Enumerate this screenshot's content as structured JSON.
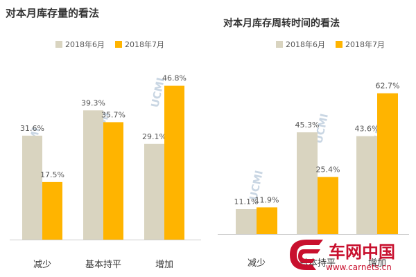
{
  "chart_data": [
    {
      "type": "bar",
      "title": "对本月库存量的看法",
      "categories": [
        "减少",
        "基本持平",
        "增加"
      ],
      "series": [
        {
          "name": "2018年6月",
          "values": [
            31.6,
            39.3,
            29.1
          ]
        },
        {
          "name": "2018年7月",
          "values": [
            17.5,
            35.7,
            46.8
          ]
        }
      ],
      "value_suffix": "%",
      "ylim": [
        0,
        60
      ],
      "grid": false,
      "legend_position": "top",
      "colors": [
        "#d9d4c0",
        "#ffb400"
      ]
    },
    {
      "type": "bar",
      "title": "对本月库存周转时间的看法",
      "categories": [
        "减少",
        "基本持平",
        "增加"
      ],
      "series": [
        {
          "name": "2018年6月",
          "values": [
            11.1,
            45.3,
            43.6
          ]
        },
        {
          "name": "2018年7月",
          "values": [
            11.9,
            25.4,
            62.7
          ]
        }
      ],
      "value_suffix": "%",
      "ylim": [
        0,
        70
      ],
      "grid": false,
      "legend_position": "top",
      "colors": [
        "#d9d4c0",
        "#ffb400"
      ]
    }
  ],
  "watermark": "UCMI",
  "logo": {
    "name": "车网中国",
    "url_text": "www.carnets.cn",
    "icon": "carnets-logo-icon",
    "color": "#c8102e"
  }
}
